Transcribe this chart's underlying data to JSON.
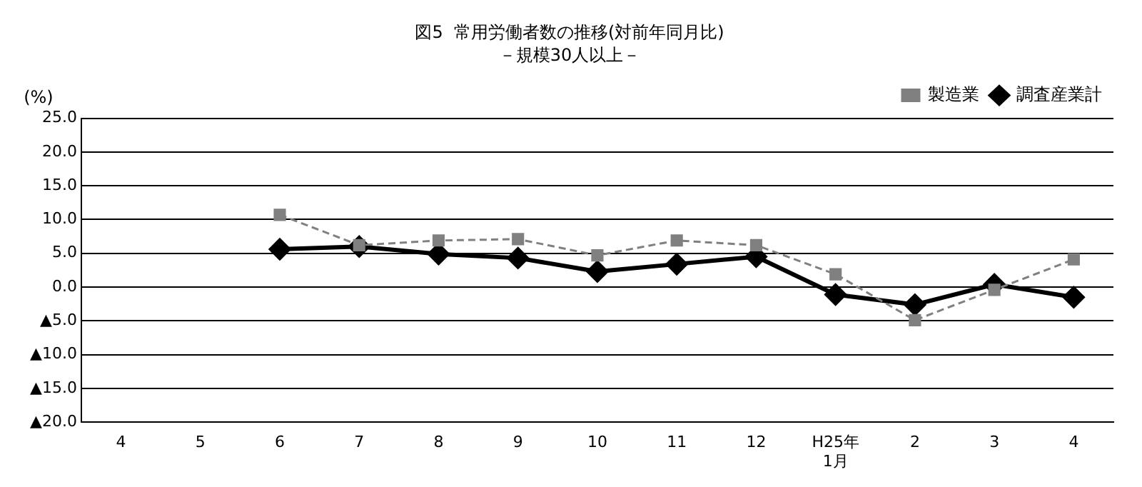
{
  "chart_data": {
    "type": "line",
    "title": "図5  常用労働者数の推移(対前年同月比)",
    "subtitle": "－規模30人以上－",
    "ylabel": "(%)",
    "categories": [
      "4",
      "5",
      "6",
      "7",
      "8",
      "9",
      "10",
      "11",
      "12",
      "H25年\n1月",
      "2",
      "3",
      "4"
    ],
    "series": [
      {
        "name": "調査産業計",
        "color": "#000000",
        "marker": "diamond",
        "line_style": "solid",
        "values": [
          null,
          null,
          5.6,
          6.0,
          4.9,
          4.3,
          2.3,
          3.4,
          4.5,
          -1.1,
          -2.6,
          0.4,
          -1.5
        ]
      },
      {
        "name": "製造業",
        "color": "#808080",
        "marker": "square",
        "line_style": "dashed",
        "values": [
          null,
          null,
          10.7,
          6.2,
          6.9,
          7.1,
          4.7,
          6.9,
          6.2,
          1.9,
          -4.9,
          -0.4,
          4.1
        ]
      }
    ],
    "ylim": [
      -20,
      25
    ],
    "yticks": [
      {
        "value": 25,
        "label": "25.0"
      },
      {
        "value": 20,
        "label": "20.0"
      },
      {
        "value": 15,
        "label": "15.0"
      },
      {
        "value": 10,
        "label": "10.0"
      },
      {
        "value": 5,
        "label": "5.0"
      },
      {
        "value": 0,
        "label": "0.0"
      },
      {
        "value": -5,
        "label": "▲5.0"
      },
      {
        "value": -10,
        "label": "▲10.0"
      },
      {
        "value": -15,
        "label": "▲15.0"
      },
      {
        "value": -20,
        "label": "▲20.0"
      }
    ],
    "grid": "y",
    "legend": "top right"
  }
}
